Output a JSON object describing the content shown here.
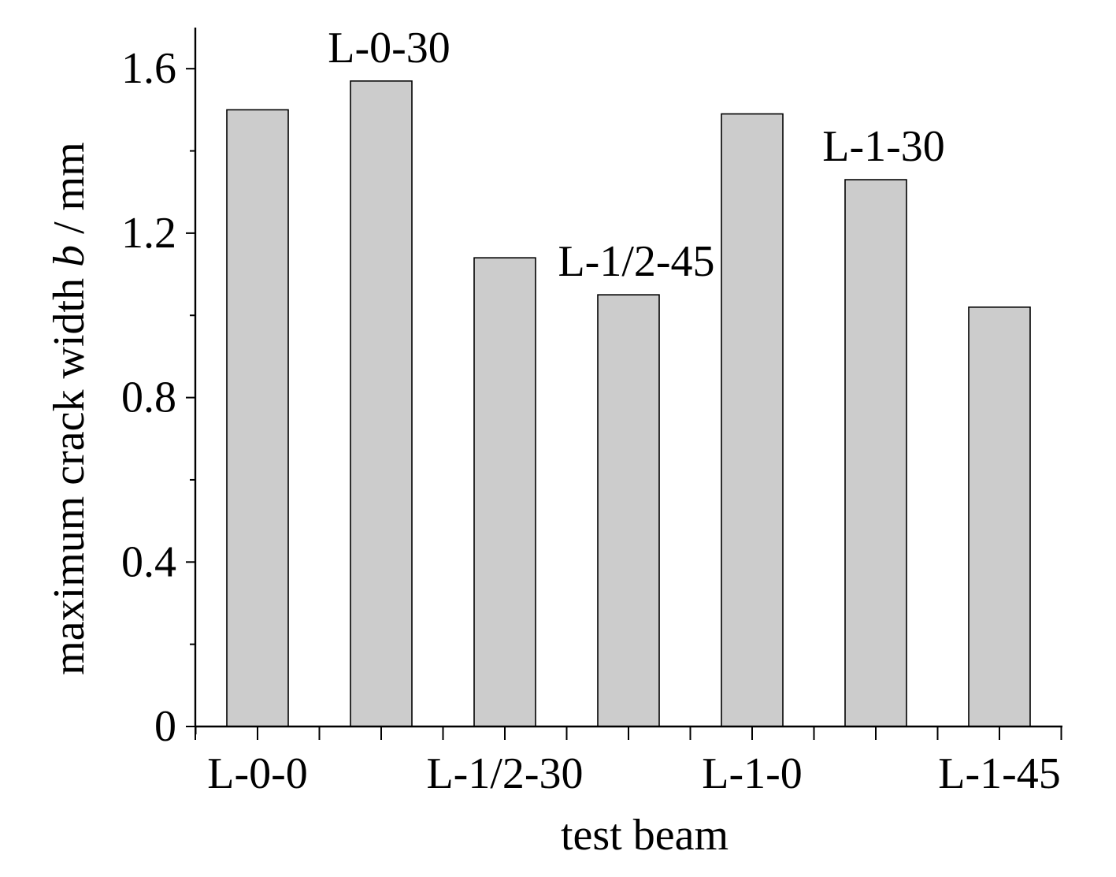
{
  "chart_data": {
    "type": "bar",
    "categories": [
      "L-0-0",
      "L-0-30",
      "L-1/2-30",
      "L-1/2-45",
      "L-1-0",
      "L-1-30",
      "L-1-45"
    ],
    "values": [
      1.5,
      1.57,
      1.14,
      1.05,
      1.49,
      1.33,
      1.02
    ],
    "xlabel": "test beam",
    "ylabel_parts": [
      "maximum crack width ",
      "b",
      " / mm"
    ],
    "ylim": [
      0,
      1.7
    ],
    "yticks": [
      0,
      0.4,
      0.8,
      1.2,
      1.6
    ],
    "ytick_labels": [
      "0",
      "0.4",
      "0.8",
      "1.2",
      "1.6"
    ],
    "xtick_labels": [
      {
        "index": 0,
        "text": "L-0-0"
      },
      {
        "index": 2,
        "text": "L-1/2-30"
      },
      {
        "index": 4,
        "text": "L-1-0"
      },
      {
        "index": 6,
        "text": "L-1-45"
      }
    ],
    "bar_annotations": [
      {
        "index": 1,
        "text": "L-0-30"
      },
      {
        "index": 3,
        "text": "L-1/2-45"
      },
      {
        "index": 5,
        "text": "L-1-30"
      }
    ],
    "bar_color": "#cccccc",
    "grid": false,
    "legend": "none"
  }
}
